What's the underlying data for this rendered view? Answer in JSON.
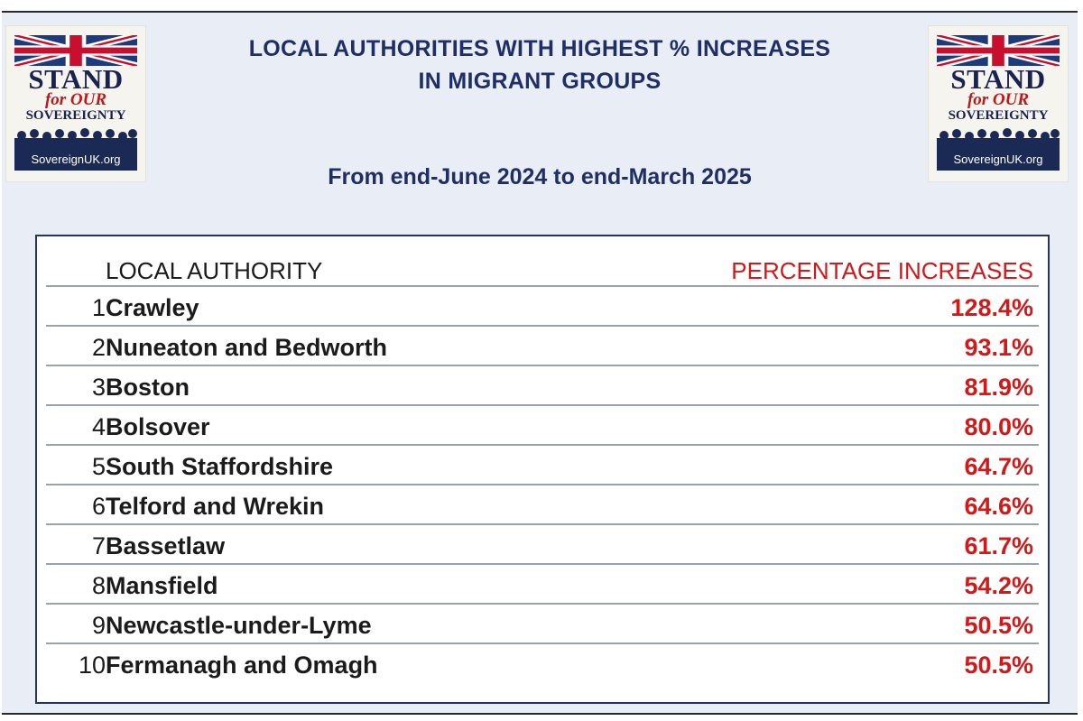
{
  "title_line1": "LOCAL AUTHORITIES WITH HIGHEST % INCREASES",
  "title_line2": "IN MIGRANT GROUPS",
  "subtitle": "From end-June 2024 to end-March 2025",
  "logo": {
    "stand": "STAND",
    "for_our": "for OUR",
    "sovereignty": "SOVEREIGNTY",
    "url": "SovereignUK.org",
    "flag_icon": "union-jack-icon"
  },
  "table": {
    "header": {
      "authority": "LOCAL AUTHORITY",
      "increase": "PERCENTAGE INCREASES"
    },
    "rows": [
      {
        "rank": "1",
        "authority": "Crawley",
        "increase": "128.4%"
      },
      {
        "rank": "2",
        "authority": "Nuneaton and Bedworth",
        "increase": "93.1%"
      },
      {
        "rank": "3",
        "authority": "Boston",
        "increase": "81.9%"
      },
      {
        "rank": "4",
        "authority": "Bolsover",
        "increase": "80.0%"
      },
      {
        "rank": "5",
        "authority": "South Staffordshire",
        "increase": "64.7%"
      },
      {
        "rank": "6",
        "authority": "Telford and Wrekin",
        "increase": "64.6%"
      },
      {
        "rank": "7",
        "authority": "Bassetlaw",
        "increase": "61.7%"
      },
      {
        "rank": "8",
        "authority": "Mansfield",
        "increase": "54.2%"
      },
      {
        "rank": "9",
        "authority": "Newcastle-under-Lyme",
        "increase": "50.5%"
      },
      {
        "rank": "10",
        "authority": "Fermanagh and Omagh",
        "increase": "50.5%"
      }
    ]
  },
  "colors": {
    "title": "#1f2f66",
    "percentage": "#d11919",
    "background": "#e9edf5"
  }
}
